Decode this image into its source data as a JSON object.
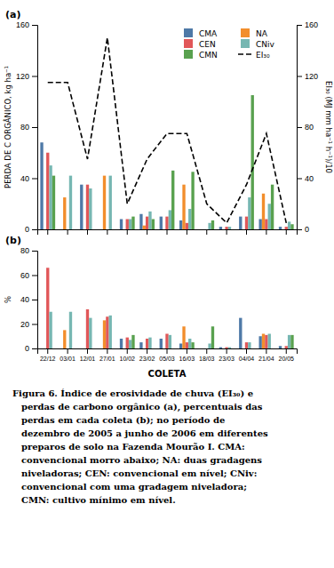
{
  "chart_data": [
    {
      "type": "bar",
      "title": "(a)",
      "categories": [
        "22/12",
        "03/01",
        "12/01",
        "27/01",
        "10/02",
        "23/02",
        "05/03",
        "16/03",
        "18/03",
        "23/03",
        "04/04",
        "21/04",
        "20/05"
      ],
      "series": [
        {
          "name": "CMA",
          "values": [
            68,
            0,
            35,
            0,
            8,
            12,
            10,
            7,
            0,
            2,
            10,
            8,
            2
          ]
        },
        {
          "name": "NA",
          "values": [
            0,
            25,
            0,
            42,
            0,
            3,
            0,
            35,
            0,
            0,
            0,
            28,
            0
          ]
        },
        {
          "name": "CEN",
          "values": [
            60,
            0,
            35,
            0,
            8,
            10,
            10,
            5,
            0,
            2,
            10,
            8,
            2
          ]
        },
        {
          "name": "CNiv",
          "values": [
            50,
            42,
            32,
            42,
            8,
            14,
            15,
            16,
            5,
            2,
            25,
            20,
            6
          ]
        },
        {
          "name": "CMN",
          "values": [
            42,
            0,
            0,
            0,
            10,
            8,
            46,
            45,
            7,
            0,
            105,
            35,
            4
          ]
        },
        {
          "name": "EI₃₀",
          "type": "line",
          "axis": "y2",
          "line_style": "dashed",
          "color": "#000000",
          "values": [
            115,
            115,
            55,
            150,
            20,
            55,
            75,
            75,
            20,
            5,
            35,
            75,
            5
          ]
        }
      ],
      "ylabel": "PERDA DE C ORGÂNICO, kg ha⁻¹",
      "y2label": "EI₃₀ (MJ mm ha⁻¹ h⁻¹)/10",
      "ylim": [
        0,
        160
      ],
      "yticks": [
        0,
        40,
        80,
        120,
        160
      ],
      "y2lim": [
        0,
        160
      ],
      "y2ticks": [
        0,
        40,
        80,
        120,
        160
      ],
      "legend": "upper right",
      "grid": false,
      "tick_labels": "y"
    },
    {
      "type": "bar",
      "title": "(b)",
      "categories": [
        "22/12",
        "03/01",
        "12/01",
        "27/01",
        "10/02",
        "23/02",
        "05/03",
        "16/03",
        "18/03",
        "23/03",
        "04/04",
        "21/04",
        "20/05"
      ],
      "series": [
        {
          "name": "CMA",
          "values": [
            0,
            0,
            0,
            0,
            8,
            5,
            8,
            4,
            0,
            1,
            25,
            10,
            2
          ]
        },
        {
          "name": "NA",
          "values": [
            0,
            15,
            0,
            23,
            0,
            0,
            0,
            18,
            0,
            0,
            0,
            12,
            0
          ]
        },
        {
          "name": "CEN",
          "values": [
            66,
            0,
            32,
            26,
            9,
            8,
            12,
            5,
            0,
            1,
            5,
            11,
            2
          ]
        },
        {
          "name": "CNiv",
          "values": [
            30,
            30,
            25,
            27,
            7,
            9,
            11,
            8,
            4,
            1,
            5,
            12,
            11
          ]
        },
        {
          "name": "CMN",
          "values": [
            0,
            0,
            0,
            0,
            11,
            0,
            0,
            5,
            18,
            0,
            0,
            0,
            11
          ]
        }
      ],
      "xlabel": "COLETA",
      "ylabel": "%",
      "ylim": [
        0,
        80
      ],
      "yticks": [
        0,
        20,
        40,
        60,
        80
      ],
      "grid": false,
      "annotations": [
        "Figura 6. Índice de erosividade de chuva (EI₃₀) e",
        "perdas de carbono orgânico (a), percentuais das",
        "perdas em cada coleta (b); no período de",
        "dezembro de 2005 a junho de 2006 em diferentes",
        "preparos de solo na Fazenda Mourão I. CMA:",
        "convencional morro abaixo; NA: duas gradagens",
        "niveladoras; CEN: convencional em nível; CNiv:",
        "convencional com uma gradagem niveladora;",
        "CMN: cultivo mínimo em nível."
      ]
    }
  ]
}
